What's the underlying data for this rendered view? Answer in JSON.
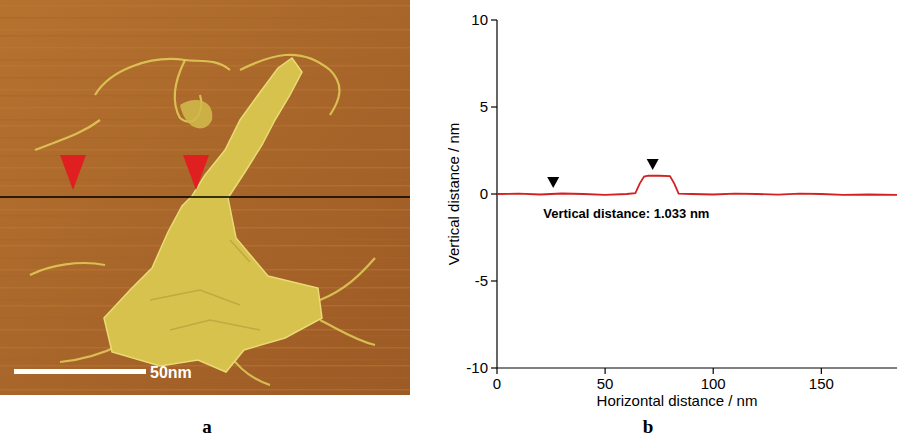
{
  "image_panel": {
    "label": "a",
    "scale_bar": "50nm"
  },
  "chart_data": {
    "type": "line",
    "label": "b",
    "x_label": "Horizontal distance / nm",
    "y_label": "Vertical distance / nm",
    "annotation": "Vertical distance: 1.033 nm",
    "color": "#d42020",
    "x": [
      0,
      10,
      20,
      30,
      40,
      50,
      60,
      64,
      66,
      68,
      70,
      75,
      80,
      82,
      84,
      90,
      100,
      110,
      120,
      130,
      140,
      150,
      160,
      172,
      185
    ],
    "values": [
      0,
      0.02,
      -0.03,
      0.03,
      0,
      -0.05,
      0,
      0.05,
      0.6,
      1.0,
      1.05,
      1.05,
      1.03,
      0.6,
      0.02,
      0,
      -0.03,
      0.02,
      0,
      -0.04,
      0.02,
      0,
      -0.05,
      -0.03,
      -0.05
    ],
    "cursors": [
      {
        "x": 26,
        "y": 0
      },
      {
        "x": 72,
        "y": 1.033
      }
    ],
    "xlim": [
      0,
      185
    ],
    "ylim": [
      -10,
      10
    ],
    "xticks": [
      0,
      50,
      100,
      150
    ],
    "yticks": [
      -10,
      -5,
      0,
      5,
      10
    ]
  }
}
